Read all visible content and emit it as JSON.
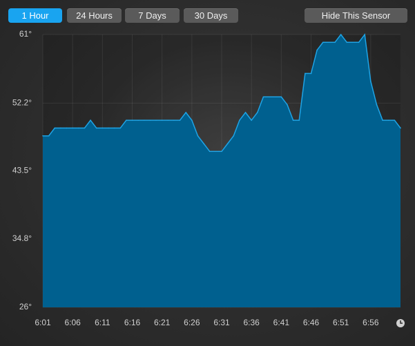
{
  "buttons": [
    {
      "label": "1 Hour",
      "active": true
    },
    {
      "label": "24 Hours",
      "active": false
    },
    {
      "label": "7 Days",
      "active": false
    },
    {
      "label": "30 Days",
      "active": false
    },
    {
      "label": "Hide This Sensor",
      "active": false
    }
  ],
  "chart_data": {
    "type": "area",
    "categories": [
      "6:01",
      null,
      null,
      null,
      null,
      "6:06",
      null,
      null,
      null,
      null,
      "6:11",
      null,
      null,
      null,
      null,
      "6:16",
      null,
      null,
      null,
      null,
      "6:21",
      null,
      null,
      null,
      null,
      "6:26",
      null,
      null,
      null,
      null,
      "6:31",
      null,
      null,
      null,
      null,
      "6:36",
      null,
      null,
      null,
      null,
      "6:41",
      null,
      null,
      null,
      null,
      "6:46",
      null,
      null,
      null,
      null,
      "6:51",
      null,
      null,
      null,
      null,
      "6:56",
      null,
      null,
      null,
      null,
      null
    ],
    "values": [
      48,
      48,
      49,
      49,
      49,
      49,
      49,
      49,
      50,
      49,
      49,
      49,
      49,
      49,
      50,
      50,
      50,
      50,
      50,
      50,
      50,
      50,
      50,
      50,
      51,
      50,
      48,
      47,
      46,
      46,
      46,
      47,
      48,
      50,
      51,
      50,
      51,
      53,
      53,
      53,
      53,
      52,
      50,
      50,
      56,
      56,
      59,
      60,
      60,
      60,
      61,
      60,
      60,
      60,
      61,
      55,
      52,
      50,
      50,
      50,
      49
    ],
    "color": "#00608f",
    "line_color": "#1ea4e6",
    "ylim": [
      26,
      61
    ],
    "yticks": [
      {
        "value": 26,
        "label": "26°"
      },
      {
        "value": 34.8,
        "label": "34.8°"
      },
      {
        "value": 43.5,
        "label": "43.5°"
      },
      {
        "value": 52.2,
        "label": "52.2°"
      },
      {
        "value": 61,
        "label": "61°"
      }
    ],
    "grid": true
  }
}
